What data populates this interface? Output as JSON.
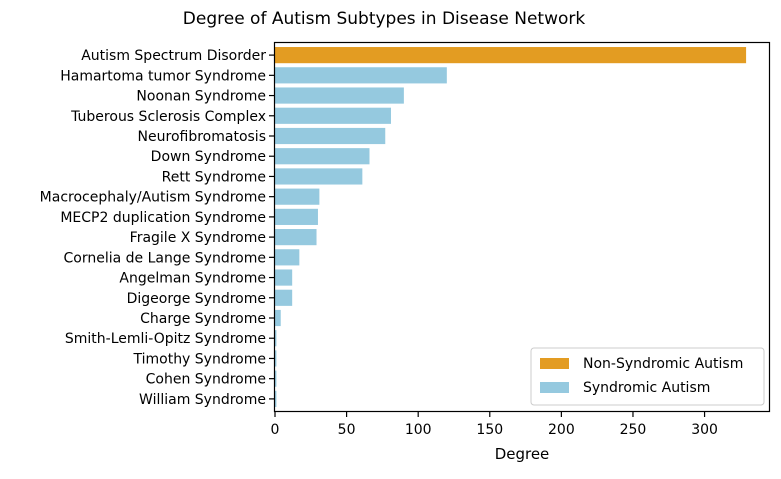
{
  "chart_data": {
    "type": "bar",
    "orientation": "horizontal",
    "title": "Degree of Autism Subtypes in Disease Network",
    "xlabel": "Degree",
    "ylabel": "",
    "xlim": [
      0,
      345
    ],
    "xticks": [
      0,
      50,
      100,
      150,
      200,
      250,
      300
    ],
    "grid": false,
    "legend_position": "bottom-right",
    "categories": [
      "Autism Spectrum Disorder",
      "Hamartoma tumor Syndrome",
      "Noonan Syndrome",
      "Tuberous Sclerosis Complex",
      "Neurofibromatosis",
      "Down Syndrome",
      "Rett Syndrome",
      "Macrocephaly/Autism Syndrome ",
      "MECP2 duplication Syndrome",
      "Fragile X Syndrome",
      "Cornelia de Lange Syndrome",
      "Angelman Syndrome",
      "Digeorge Syndrome",
      "Charge Syndrome",
      "Smith-Lemli-Opitz Syndrome",
      "Timothy Syndrome",
      "Cohen Syndrome",
      "William Syndrome"
    ],
    "values": [
      329,
      120,
      90,
      81,
      77,
      66,
      61,
      31,
      30,
      29,
      17,
      12,
      12,
      4,
      1,
      1,
      1,
      1
    ],
    "groups": [
      "Non-Syndromic Autism",
      "Syndromic Autism",
      "Syndromic Autism",
      "Syndromic Autism",
      "Syndromic Autism",
      "Syndromic Autism",
      "Syndromic Autism",
      "Syndromic Autism",
      "Syndromic Autism",
      "Syndromic Autism",
      "Syndromic Autism",
      "Syndromic Autism",
      "Syndromic Autism",
      "Syndromic Autism",
      "Syndromic Autism",
      "Syndromic Autism",
      "Syndromic Autism",
      "Syndromic Autism"
    ],
    "legend": [
      {
        "name": "Non-Syndromic Autism",
        "color": "#e39c22"
      },
      {
        "name": "Syndromic Autism",
        "color": "#95c9df"
      }
    ]
  }
}
